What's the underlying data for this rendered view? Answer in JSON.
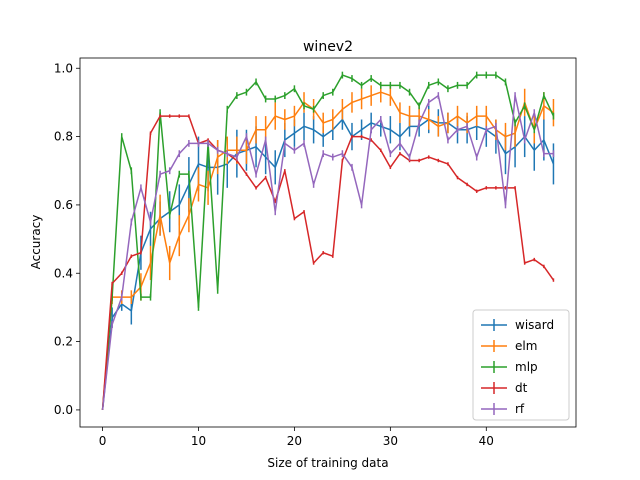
{
  "chart_data": {
    "type": "line",
    "title": "winev2",
    "xlabel": "Size of training data",
    "ylabel": "Accuracy",
    "xlim": [
      -2.35,
      49.35
    ],
    "ylim": [
      -0.05,
      1.03
    ],
    "xticks": [
      0,
      10,
      20,
      30,
      40
    ],
    "yticks": [
      0.0,
      0.2,
      0.4,
      0.6,
      0.8,
      1.0
    ],
    "ytick_labels": [
      "0.0",
      "0.2",
      "0.4",
      "0.6",
      "0.8",
      "1.0"
    ],
    "grid": false,
    "legend": "lower-right",
    "x": [
      0,
      1,
      2,
      3,
      4,
      5,
      6,
      7,
      8,
      9,
      10,
      11,
      12,
      13,
      14,
      15,
      16,
      17,
      18,
      19,
      20,
      21,
      22,
      23,
      24,
      25,
      26,
      27,
      28,
      29,
      30,
      31,
      32,
      33,
      34,
      35,
      36,
      37,
      38,
      39,
      40,
      41,
      42,
      43,
      44,
      45,
      46,
      47
    ],
    "series": [
      {
        "name": "wisard",
        "color": "#1f77b4",
        "values": [
          0.0,
          0.27,
          0.31,
          0.29,
          0.46,
          0.53,
          0.56,
          0.58,
          0.6,
          0.66,
          0.72,
          0.71,
          0.71,
          0.72,
          0.75,
          0.76,
          0.77,
          0.74,
          0.71,
          0.79,
          0.81,
          0.83,
          0.82,
          0.8,
          0.82,
          0.85,
          0.8,
          0.82,
          0.84,
          0.83,
          0.82,
          0.8,
          0.83,
          0.83,
          0.85,
          0.84,
          0.84,
          0.82,
          0.82,
          0.83,
          0.82,
          0.8,
          0.75,
          0.77,
          0.8,
          0.76,
          0.79,
          0.72
        ],
        "err": [
          0,
          0.03,
          0.02,
          0.04,
          0.05,
          0.05,
          0.05,
          0.06,
          0.06,
          0.08,
          0.08,
          0.07,
          0.08,
          0.07,
          0.07,
          0.06,
          0.06,
          0.05,
          0.05,
          0.05,
          0.04,
          0.04,
          0.04,
          0.03,
          0.03,
          0.03,
          0.04,
          0.03,
          0.03,
          0.03,
          0.04,
          0.04,
          0.03,
          0.03,
          0.04,
          0.04,
          0.03,
          0.04,
          0.04,
          0.04,
          0.05,
          0.05,
          0.06,
          0.06,
          0.06,
          0.06,
          0.06,
          0.06
        ]
      },
      {
        "name": "elm",
        "color": "#ff7f0e",
        "values": [
          0.0,
          0.33,
          0.33,
          0.33,
          0.36,
          0.43,
          0.57,
          0.43,
          0.51,
          0.57,
          0.66,
          0.65,
          0.74,
          0.76,
          0.76,
          0.76,
          0.82,
          0.82,
          0.86,
          0.85,
          0.86,
          0.9,
          0.88,
          0.84,
          0.85,
          0.88,
          0.9,
          0.91,
          0.92,
          0.93,
          0.92,
          0.87,
          0.86,
          0.86,
          0.85,
          0.83,
          0.84,
          0.86,
          0.84,
          0.86,
          0.86,
          0.82,
          0.8,
          0.81,
          0.9,
          0.82,
          0.89,
          0.87
        ],
        "err": [
          0,
          0.02,
          0.02,
          0.02,
          0.04,
          0.05,
          0.06,
          0.05,
          0.06,
          0.05,
          0.05,
          0.05,
          0.05,
          0.04,
          0.04,
          0.04,
          0.04,
          0.04,
          0.04,
          0.03,
          0.03,
          0.03,
          0.03,
          0.03,
          0.03,
          0.03,
          0.03,
          0.03,
          0.03,
          0.03,
          0.03,
          0.03,
          0.03,
          0.03,
          0.03,
          0.03,
          0.03,
          0.03,
          0.03,
          0.03,
          0.03,
          0.03,
          0.04,
          0.04,
          0.04,
          0.04,
          0.04,
          0.04
        ]
      },
      {
        "name": "mlp",
        "color": "#2ca02c",
        "values": [
          0.0,
          0.33,
          0.8,
          0.7,
          0.33,
          0.33,
          0.87,
          0.57,
          0.69,
          0.69,
          0.3,
          0.78,
          0.35,
          0.88,
          0.92,
          0.93,
          0.96,
          0.91,
          0.91,
          0.92,
          0.94,
          0.89,
          0.88,
          0.92,
          0.93,
          0.98,
          0.97,
          0.95,
          0.97,
          0.95,
          0.95,
          0.95,
          0.93,
          0.89,
          0.95,
          0.96,
          0.94,
          0.95,
          0.95,
          0.98,
          0.98,
          0.98,
          0.96,
          0.84,
          0.89,
          0.82,
          0.92,
          0.86
        ],
        "err": [
          0,
          0.01,
          0.01,
          0.01,
          0.01,
          0.01,
          0.01,
          0.01,
          0.01,
          0.01,
          0.01,
          0.01,
          0.01,
          0.01,
          0.01,
          0.01,
          0.01,
          0.01,
          0.01,
          0.01,
          0.01,
          0.01,
          0.01,
          0.01,
          0.01,
          0.01,
          0.01,
          0.01,
          0.01,
          0.01,
          0.01,
          0.01,
          0.01,
          0.01,
          0.01,
          0.01,
          0.01,
          0.01,
          0.01,
          0.01,
          0.01,
          0.01,
          0.01,
          0.01,
          0.01,
          0.01,
          0.01,
          0.01
        ]
      },
      {
        "name": "dt",
        "color": "#d62728",
        "values": [
          0.0,
          0.37,
          0.4,
          0.45,
          0.46,
          0.81,
          0.86,
          0.86,
          0.86,
          0.86,
          0.78,
          0.79,
          0.76,
          0.75,
          0.73,
          0.69,
          0.65,
          0.68,
          0.61,
          0.7,
          0.56,
          0.58,
          0.43,
          0.46,
          0.45,
          0.73,
          0.8,
          0.8,
          0.79,
          0.76,
          0.71,
          0.75,
          0.73,
          0.73,
          0.74,
          0.73,
          0.72,
          0.68,
          0.66,
          0.64,
          0.65,
          0.65,
          0.65,
          0.65,
          0.43,
          0.44,
          0.42,
          0.38
        ],
        "err": [
          0,
          0.005,
          0.005,
          0.005,
          0.005,
          0.005,
          0.005,
          0.005,
          0.005,
          0.005,
          0.005,
          0.005,
          0.005,
          0.005,
          0.005,
          0.005,
          0.005,
          0.005,
          0.005,
          0.005,
          0.005,
          0.005,
          0.005,
          0.005,
          0.005,
          0.005,
          0.005,
          0.005,
          0.005,
          0.005,
          0.005,
          0.005,
          0.005,
          0.005,
          0.005,
          0.005,
          0.005,
          0.005,
          0.005,
          0.005,
          0.005,
          0.005,
          0.005,
          0.005,
          0.005,
          0.005,
          0.005,
          0.005
        ]
      },
      {
        "name": "rf",
        "color": "#9467bd",
        "values": [
          0.0,
          0.25,
          0.33,
          0.55,
          0.65,
          0.55,
          0.69,
          0.7,
          0.75,
          0.78,
          0.78,
          0.78,
          0.76,
          0.75,
          0.74,
          0.8,
          0.69,
          0.79,
          0.58,
          0.78,
          0.76,
          0.78,
          0.66,
          0.75,
          0.74,
          0.75,
          0.71,
          0.6,
          0.82,
          0.85,
          0.75,
          0.78,
          0.74,
          0.84,
          0.9,
          0.92,
          0.79,
          0.82,
          0.83,
          0.74,
          0.82,
          0.83,
          0.6,
          0.92,
          0.79,
          0.87,
          0.75,
          0.75
        ],
        "err": [
          0,
          0.01,
          0.01,
          0.01,
          0.01,
          0.01,
          0.01,
          0.01,
          0.01,
          0.01,
          0.01,
          0.01,
          0.01,
          0.01,
          0.01,
          0.01,
          0.01,
          0.01,
          0.01,
          0.01,
          0.01,
          0.01,
          0.01,
          0.01,
          0.01,
          0.01,
          0.01,
          0.01,
          0.01,
          0.01,
          0.01,
          0.01,
          0.01,
          0.01,
          0.01,
          0.01,
          0.01,
          0.01,
          0.01,
          0.01,
          0.01,
          0.01,
          0.01,
          0.01,
          0.01,
          0.01,
          0.01,
          0.01
        ]
      }
    ]
  }
}
